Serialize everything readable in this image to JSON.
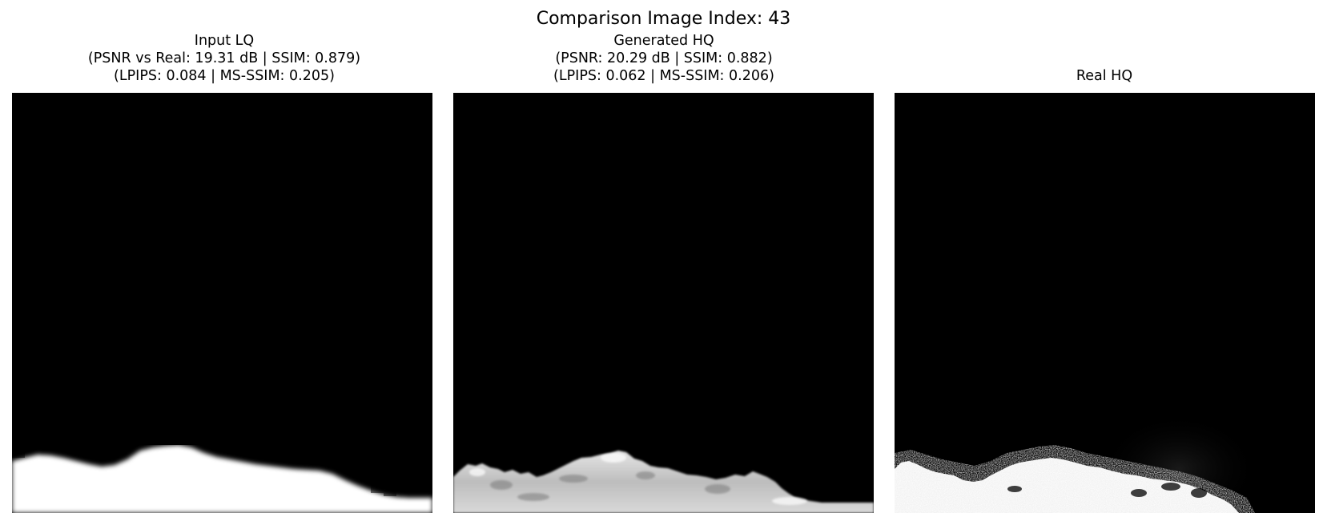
{
  "figure": {
    "suptitle": "Comparison Image Index: 43"
  },
  "panels": [
    {
      "title_lines": [
        "Input LQ",
        "(PSNR vs Real: 19.31 dB | SSIM: 0.879)",
        "(LPIPS: 0.084 | MS-SSIM: 0.205)"
      ]
    },
    {
      "title_lines": [
        "Generated HQ",
        "(PSNR: 20.29 dB | SSIM: 0.882)",
        "(LPIPS: 0.062 | MS-SSIM: 0.206)"
      ]
    },
    {
      "title_lines": [
        "Real HQ"
      ]
    }
  ],
  "colors": {
    "image_background": "#000000",
    "foreground_white": "#ffffff",
    "generated_gray": "#c8c8c8"
  }
}
